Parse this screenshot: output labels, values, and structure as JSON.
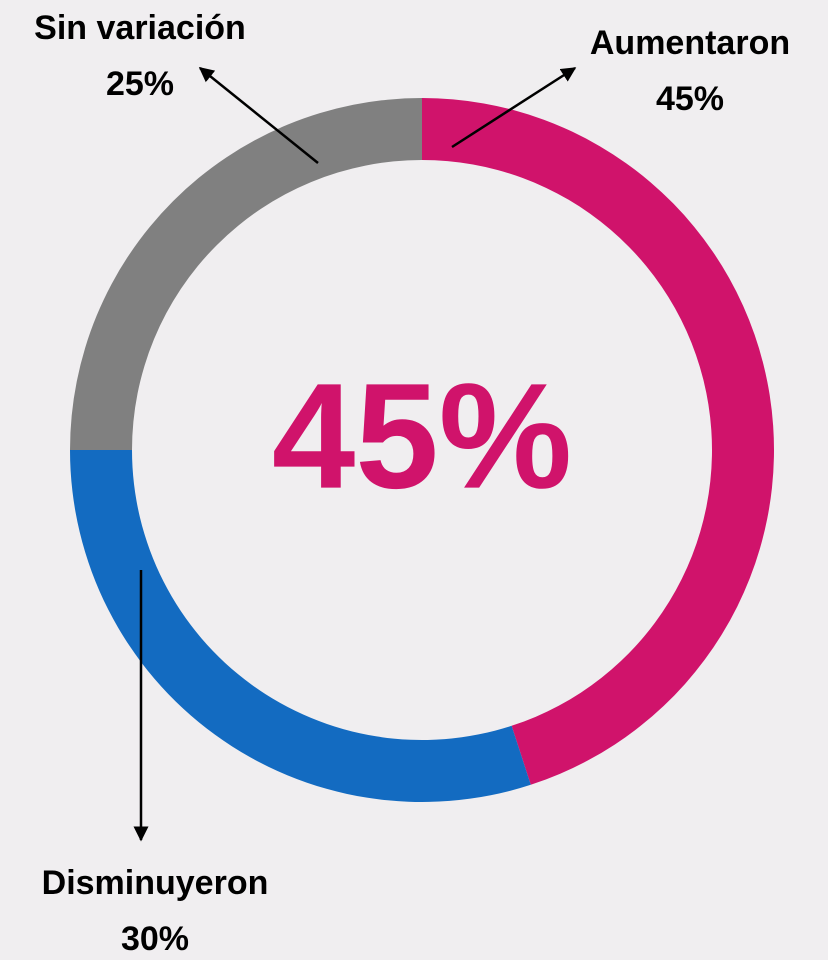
{
  "chart_data": {
    "type": "pie",
    "donut": true,
    "categories": [
      "Aumentaron",
      "Disminuyeron",
      "Sin variación"
    ],
    "values": [
      45,
      30,
      25
    ],
    "value_labels": [
      "45%",
      "30%",
      "25%"
    ],
    "colors": [
      "#d0136b",
      "#136bc1",
      "#808080"
    ],
    "annotation": "45%"
  }
}
